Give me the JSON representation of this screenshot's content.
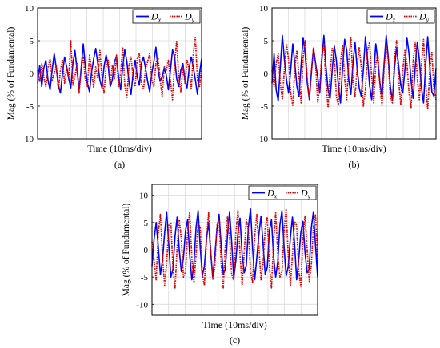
{
  "chart_data": [
    {
      "type": "line",
      "panel_label": "(a)",
      "xlabel": "Time (10ms/div)",
      "ylabel": "Mag (% of Fundamental)",
      "ylim": [
        -10,
        10
      ],
      "yticks": [
        -10,
        -5,
        0,
        5,
        10
      ],
      "grid": true,
      "legend": "top-right",
      "x_divisions": 10,
      "series": [
        {
          "name": "Dx",
          "name_main": "D",
          "name_sub": "x",
          "color": "#0000ff",
          "dash": "solid",
          "values": [
            -1.5,
            1.2,
            -2.0,
            0.8,
            2.0,
            -1.0,
            -2.5,
            0.5,
            3.0,
            0.8,
            -1.8,
            -3.0,
            0.0,
            2.5,
            1.0,
            -0.8,
            -2.2,
            1.5,
            3.5,
            0.5,
            -2.5,
            0.8,
            4.5,
            1.0,
            -1.5,
            -2.8,
            0.2,
            2.2,
            3.8,
            1.5,
            -1.0,
            -2.2,
            1.0,
            2.8,
            1.2,
            -2.0,
            -1.0,
            1.8,
            2.5,
            -0.5,
            -2.5,
            1.0,
            3.6,
            1.8,
            -1.2,
            -3.2,
            0.0,
            2.0,
            -0.5,
            -1.8,
            1.5,
            2.5,
            0.8,
            -1.2,
            -2.8,
            0.0,
            1.8,
            4.0,
            0.6,
            -1.2,
            -0.5,
            0.8,
            -0.3,
            -2.5,
            0.5,
            3.6,
            2.5,
            -0.8,
            -2.0,
            0.5,
            1.5,
            -1.0,
            -2.2,
            0.8,
            2.5,
            1.0,
            -1.0,
            -3.2,
            0.0,
            2.2
          ]
        },
        {
          "name": "Dy",
          "name_main": "D",
          "name_sub": "y",
          "color": "#dd0000",
          "dash": "dotted",
          "values": [
            0.5,
            -1.2,
            1.5,
            -0.5,
            -2.0,
            0.8,
            2.2,
            -1.0,
            0.0,
            1.2,
            -2.5,
            0.5,
            2.0,
            -1.5,
            1.0,
            -0.5,
            5.0,
            -1.8,
            -0.5,
            1.5,
            -3.0,
            0.8,
            2.5,
            -1.0,
            -2.0,
            2.8,
            0.5,
            -2.2,
            1.0,
            -0.8,
            3.5,
            -0.5,
            -3.0,
            1.0,
            2.0,
            -1.5,
            1.2,
            -0.8,
            2.8,
            -2.0,
            0.0,
            4.0,
            -1.8,
            -3.8,
            1.2,
            2.5,
            -0.5,
            -2.0,
            2.2,
            3.0,
            -1.5,
            -2.5,
            0.8,
            1.8,
            3.0,
            -1.0,
            -2.0,
            1.5,
            2.5,
            -0.8,
            -3.5,
            1.0,
            0.5,
            2.0,
            -1.2,
            -4.0,
            1.5,
            5.0,
            -0.5,
            -2.8,
            1.0,
            -1.5,
            2.0,
            0.5,
            -2.5,
            3.0,
            5.5,
            -1.0,
            -2.0,
            1.0
          ]
        }
      ]
    },
    {
      "type": "line",
      "panel_label": "(b)",
      "xlabel": "Time (10ms/div)",
      "ylabel": "Mag (% of Fundamental)",
      "ylim": [
        -10,
        10
      ],
      "yticks": [
        -10,
        -5,
        0,
        5,
        10
      ],
      "grid": true,
      "legend": "top-right",
      "x_divisions": 10,
      "series": [
        {
          "name": "Dx",
          "name_main": "D",
          "name_sub": "x",
          "color": "#0000ff",
          "dash": "solid",
          "values": [
            -1.5,
            3.0,
            -2.5,
            -4.2,
            1.0,
            5.8,
            2.0,
            -1.0,
            -3.0,
            0.5,
            4.5,
            1.5,
            -2.0,
            -3.5,
            1.2,
            5.5,
            3.0,
            -1.5,
            -4.0,
            0.2,
            3.8,
            1.5,
            -0.5,
            -3.0,
            2.0,
            5.8,
            1.0,
            -2.5,
            -3.8,
            0.5,
            4.2,
            2.0,
            -2.0,
            -4.5,
            0.8,
            5.2,
            3.5,
            -1.0,
            -3.2,
            1.5,
            4.8,
            0.8,
            -2.2,
            -3.5,
            0.5,
            5.6,
            2.2,
            -1.8,
            -4.0,
            0.0,
            4.5,
            1.8,
            -1.5,
            -3.5,
            1.5,
            5.8,
            2.5,
            -2.0,
            -4.2,
            0.8,
            4.0,
            1.2,
            -1.8,
            -3.0,
            0.5,
            5.5,
            3.0,
            -1.2,
            -3.8,
            1.0,
            4.8,
            2.0,
            -2.2,
            -4.5,
            1.2,
            5.6,
            1.0,
            -2.8,
            -3.5,
            0.8
          ]
        },
        {
          "name": "Dy",
          "name_main": "D",
          "name_sub": "y",
          "color": "#dd0000",
          "dash": "dotted",
          "values": [
            0.5,
            -2.0,
            1.5,
            3.0,
            -1.5,
            -4.0,
            0.8,
            4.5,
            2.0,
            -3.0,
            -5.0,
            1.0,
            3.5,
            -0.5,
            -4.5,
            2.5,
            5.0,
            -1.0,
            -3.8,
            0.5,
            4.0,
            1.5,
            -4.5,
            -2.0,
            2.8,
            4.5,
            -1.5,
            -5.2,
            0.2,
            3.8,
            2.5,
            -3.5,
            -4.8,
            1.8,
            4.2,
            -0.8,
            -4.0,
            2.0,
            5.5,
            -1.2,
            -3.5,
            0.8,
            4.0,
            1.0,
            -5.0,
            -2.5,
            3.5,
            4.8,
            -0.5,
            -4.5,
            1.5,
            3.0,
            -2.0,
            -5.0,
            0.8,
            4.5,
            2.0,
            -3.8,
            -4.5,
            2.2,
            5.0,
            -1.0,
            -4.8,
            0.5,
            3.5,
            1.5,
            -3.0,
            -5.2,
            2.0,
            4.8,
            -0.8,
            -4.0,
            1.2,
            5.2,
            -1.5,
            -5.5,
            0.5,
            3.2,
            -2.5,
            -4.0
          ]
        }
      ]
    },
    {
      "type": "line",
      "panel_label": "(c)",
      "xlabel": "Time (10ms/div)",
      "ylabel": "Mag (% of Fundamental)",
      "ylim": [
        -12,
        12
      ],
      "yticks": [
        -10,
        -5,
        0,
        5,
        10
      ],
      "grid": true,
      "legend": "top-right",
      "x_divisions": 10,
      "series": [
        {
          "name": "Dx",
          "name_main": "D",
          "name_sub": "x",
          "color": "#0000ff",
          "dash": "solid",
          "values": [
            -3.0,
            2.0,
            5.0,
            0.5,
            -4.5,
            -2.0,
            3.0,
            7.0,
            1.0,
            -5.0,
            -3.5,
            2.5,
            6.0,
            0.0,
            -4.0,
            -1.5,
            3.5,
            5.5,
            -1.0,
            -5.5,
            -2.5,
            4.0,
            7.2,
            0.5,
            -4.8,
            -3.0,
            2.0,
            5.0,
            -0.5,
            -5.0,
            -1.0,
            3.8,
            6.5,
            0.8,
            -4.5,
            -3.5,
            2.5,
            7.0,
            1.5,
            -5.2,
            -2.0,
            3.0,
            5.8,
            -0.8,
            -4.2,
            -2.8,
            4.2,
            7.5,
            0.2,
            -5.5,
            -1.5,
            2.8,
            6.2,
            1.0,
            -4.5,
            -3.2,
            3.5,
            5.5,
            -1.2,
            -5.0,
            -2.2,
            4.5,
            7.2,
            0.5,
            -4.8,
            -3.0,
            2.2,
            6.0,
            1.2,
            -5.5,
            -1.8,
            3.2,
            5.2,
            -0.5,
            -4.2,
            -3.5,
            4.0,
            7.0,
            0.8,
            -5.0
          ]
        },
        {
          "name": "Dy",
          "name_main": "D",
          "name_sub": "y",
          "color": "#dd0000",
          "dash": "dotted",
          "values": [
            1.5,
            -2.0,
            -5.5,
            3.0,
            6.5,
            -1.0,
            -6.5,
            -2.5,
            4.5,
            5.0,
            -3.5,
            -7.0,
            0.5,
            5.5,
            2.0,
            -5.0,
            -4.0,
            3.5,
            7.0,
            -1.5,
            -6.0,
            -1.0,
            5.0,
            4.0,
            -4.5,
            -6.5,
            2.0,
            6.8,
            0.0,
            -5.5,
            -3.0,
            4.5,
            5.5,
            -2.5,
            -7.0,
            1.0,
            6.0,
            2.5,
            -4.5,
            -5.5,
            3.0,
            7.2,
            -1.0,
            -6.5,
            -0.5,
            5.5,
            3.5,
            -4.0,
            -6.0,
            2.5,
            6.5,
            0.5,
            -5.5,
            -2.5,
            4.0,
            6.0,
            -3.0,
            -7.0,
            1.5,
            6.8,
            -0.8,
            -5.0,
            -4.0,
            3.5,
            7.5,
            -1.2,
            -6.5,
            -1.0,
            5.2,
            4.5,
            -3.8,
            -6.8,
            2.2,
            6.2,
            0.2,
            -5.8,
            -2.8,
            4.2,
            6.5,
            -2.0
          ]
        }
      ]
    }
  ]
}
